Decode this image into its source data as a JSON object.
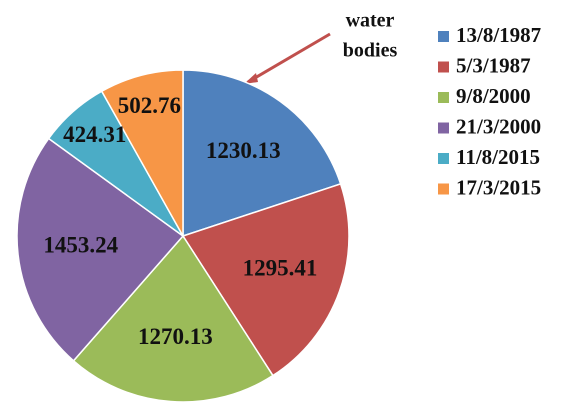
{
  "chart_data": {
    "type": "pie",
    "categories": [
      "13/8/1987",
      "5/3/1987",
      "9/8/2000",
      "21/3/2000",
      "11/8/2015",
      "17/3/2015"
    ],
    "values": [
      1230.13,
      1295.41,
      1270.13,
      1453.24,
      424.31,
      502.76
    ],
    "colors": [
      "#4f81bd",
      "#c0504d",
      "#9bbb59",
      "#8064a2",
      "#4bacc6",
      "#f79646"
    ],
    "annotation": [
      "water",
      "bodies"
    ],
    "legend": "right"
  }
}
